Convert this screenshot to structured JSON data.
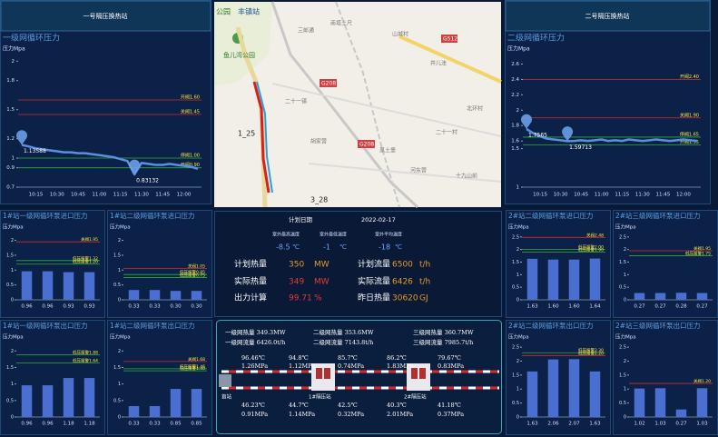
{
  "chart_data": [
    {
      "type": "line",
      "header": "一号隔压换热站",
      "title": "一级网循环压力",
      "y_label": "压力Mpa",
      "color": "#5b8fe0",
      "categories": [
        null,
        null,
        "10:15",
        null,
        null,
        "10:30",
        null,
        null,
        "10:45",
        null,
        null,
        "11:00",
        null,
        null,
        "11:15",
        null,
        null,
        "11:30",
        null,
        null,
        "11:45",
        null,
        null,
        "12:00",
        null,
        null
      ],
      "values": [
        1.13588,
        1.12,
        1.1,
        1.09,
        1.08,
        1.07,
        1.06,
        1.06,
        1.05,
        1.05,
        1.04,
        1.03,
        1.02,
        1.01,
        0.99,
        0.97,
        0.83132,
        0.95,
        0.94,
        0.93,
        0.93,
        0.94,
        0.93,
        0.92,
        0.91,
        0.89
      ],
      "value_labels": [
        "1.13588",
        null,
        null,
        null,
        null,
        null,
        null,
        null,
        null,
        null,
        null,
        null,
        null,
        null,
        null,
        null,
        "0.83132",
        null,
        null,
        null,
        null,
        null,
        null,
        null,
        null,
        null
      ],
      "ylim": [
        0.7,
        2.05
      ],
      "yticks": [
        0.7,
        0.9,
        1,
        1.2,
        1.5,
        1.8,
        2
      ],
      "thresholds": [
        {
          "value": 1.6,
          "label": "开阀1.60",
          "color": "#d62a2a"
        },
        {
          "value": 1.45,
          "label": "关阀1.45",
          "color": "#d62a2a"
        },
        {
          "value": 1,
          "label": "停阀1.00",
          "color": "#2fae3a"
        },
        {
          "value": 0.9,
          "label": "开阀0.90",
          "color": "#2fae3a"
        }
      ]
    },
    {
      "type": "line",
      "header": "二号隔压换热站",
      "title": "二级网循环压力",
      "y_label": "压力Mpa",
      "color": "#5b8fe0",
      "categories": [
        null,
        null,
        "10:15",
        null,
        null,
        "10:30",
        null,
        null,
        "10:45",
        null,
        null,
        "11:00",
        null,
        null,
        "11:15",
        null,
        null,
        "11:30",
        null,
        null,
        "11:45",
        null,
        null,
        "12:00",
        null,
        null
      ],
      "values": [
        1.7565,
        1.7,
        1.66,
        1.63,
        1.62,
        1.61,
        1.59713,
        1.6,
        1.61,
        1.6,
        1.61,
        1.62,
        1.6,
        1.61,
        1.6,
        1.62,
        1.61,
        1.6,
        1.61,
        1.62,
        1.61,
        1.6,
        1.61,
        1.62,
        1.61,
        1.6
      ],
      "value_labels": [
        "1.7565",
        null,
        null,
        null,
        null,
        null,
        "1.59713",
        null,
        null,
        null,
        null,
        null,
        null,
        null,
        null,
        null,
        null,
        null,
        null,
        null,
        null,
        null,
        null,
        null,
        null,
        null
      ],
      "ylim": [
        1,
        2.7
      ],
      "yticks": [
        1,
        1.5,
        1.6,
        1.8,
        2,
        2.2,
        2.4,
        2.6
      ],
      "thresholds": [
        {
          "value": 2.4,
          "label": "开阀2.40",
          "color": "#d62a2a"
        },
        {
          "value": 1.9,
          "label": "关阀1.90",
          "color": "#d62a2a"
        },
        {
          "value": 1.65,
          "label": "停阀1.65",
          "color": "#2fae3a"
        },
        {
          "value": 1.55,
          "label": "开阀1.55",
          "color": "#2fae3a"
        }
      ]
    },
    {
      "type": "bar",
      "title": "1#站一级网循环泵进口压力",
      "y_label": "压力Mpa",
      "color": "#4a6fd0",
      "values": [
        0.96,
        0.96,
        0.93,
        0.93
      ],
      "value_labels": [
        "0.96",
        "0.96",
        "0.93",
        "0.93"
      ],
      "ylim": [
        0,
        2.2
      ],
      "yticks": [
        0,
        0.5,
        1,
        1.5,
        2
      ],
      "thresholds": [
        {
          "value": 1.95,
          "label": "关阀1.95",
          "color": "#d62a2a"
        },
        {
          "value": 1.32,
          "label": "低压报警1.32",
          "color": "#2fae3a"
        },
        {
          "value": 1.2,
          "label": "低压报警1.20",
          "color": "#2fae3a"
        }
      ]
    },
    {
      "type": "bar",
      "title": "1#站二级网循环泵进口压力",
      "y_label": "压力Mpa",
      "color": "#4a6fd0",
      "values": [
        0.33,
        0.33,
        0.3,
        0.3
      ],
      "value_labels": [
        "0.33",
        "0.33",
        "0.30",
        "0.30"
      ],
      "ylim": [
        0,
        2.2
      ],
      "yticks": [
        0,
        0.5,
        1,
        1.5,
        2
      ],
      "thresholds": [
        {
          "value": 1.05,
          "label": "关阀1.05",
          "color": "#d62a2a"
        },
        {
          "value": 0.85,
          "label": "低压报警0.85",
          "color": "#2fae3a"
        },
        {
          "value": 0.75,
          "label": "低压报警0.75",
          "color": "#2fae3a"
        }
      ]
    },
    {
      "type": "bar",
      "title": "1#站一级网循环泵出口压力",
      "y_label": "压力Mpa",
      "color": "#4a6fd0",
      "values": [
        0.96,
        0.96,
        1.18,
        1.18
      ],
      "value_labels": [
        "0.96",
        "0.96",
        "1.18",
        "1.18"
      ],
      "ylim": [
        0,
        2.2
      ],
      "yticks": [
        0,
        0.5,
        1,
        1.5,
        2
      ],
      "thresholds": [
        {
          "value": 1.88,
          "label": "低压报警1.88",
          "color": "#2fae3a"
        },
        {
          "value": 1.64,
          "label": "低压报警1.64",
          "color": "#2fae3a"
        }
      ]
    },
    {
      "type": "bar",
      "title": "1#站二级网循环泵出口压力",
      "y_label": "压力Mpa",
      "color": "#4a6fd0",
      "values": [
        0.33,
        0.33,
        0.85,
        0.85
      ],
      "value_labels": [
        "0.33",
        "0.33",
        "0.85",
        "0.85"
      ],
      "ylim": [
        0,
        2.2
      ],
      "yticks": [
        0,
        0.5,
        1,
        1.5,
        2
      ],
      "thresholds": [
        {
          "value": 1.68,
          "label": "关阀1.68",
          "color": "#d62a2a"
        },
        {
          "value": 1.46,
          "label": "低压报警1.46",
          "color": "#2fae3a"
        },
        {
          "value": 1.4,
          "label": "低压报警1.40",
          "color": "#2fae3a"
        }
      ]
    },
    {
      "type": "bar",
      "title": "2#站二级网循环泵进口压力",
      "y_label": "压力Mpa",
      "color": "#4a6fd0",
      "values": [
        1.63,
        1.6,
        1.6,
        1.64
      ],
      "value_labels": [
        "1.63",
        "1.60",
        "1.60",
        "1.64"
      ],
      "ylim": [
        0,
        2.6
      ],
      "yticks": [
        0,
        0.5,
        1,
        1.5,
        2,
        2.5
      ],
      "thresholds": [
        {
          "value": 2.48,
          "label": "关阀2.48",
          "color": "#d62a2a"
        },
        {
          "value": 2.0,
          "label": "低压报警2.00",
          "color": "#2fae3a"
        },
        {
          "value": 1.9,
          "label": "低压报警1.90",
          "color": "#2fae3a"
        }
      ]
    },
    {
      "type": "bar",
      "title": "2#站三级网循环泵进口压力",
      "y_label": "压力Mpa",
      "color": "#4a6fd0",
      "values": [
        0.27,
        0.27,
        0.28,
        0.27
      ],
      "value_labels": [
        "0.27",
        "0.27",
        "0.28",
        "0.27"
      ],
      "ylim": [
        0,
        2.6
      ],
      "yticks": [
        0,
        0.5,
        1,
        1.5,
        2,
        2.5
      ],
      "thresholds": [
        {
          "value": 1.95,
          "label": "关阀1.95",
          "color": "#d62a2a"
        },
        {
          "value": 1.75,
          "label": "低压报警1.75",
          "color": "#2fae3a"
        }
      ]
    },
    {
      "type": "bar",
      "title": "2#站二级网循环泵出口压力",
      "y_label": "压力Mpa",
      "color": "#4a6fd0",
      "values": [
        1.63,
        2.06,
        2.07,
        1.63
      ],
      "value_labels": [
        "1.63",
        "2.06",
        "2.07",
        "1.63"
      ],
      "ylim": [
        0,
        2.6
      ],
      "yticks": [
        0,
        0.5,
        1,
        1.5,
        2,
        2.5
      ],
      "thresholds": [
        {
          "value": 2.3,
          "label": "低压报警2.30",
          "color": "#2fae3a"
        },
        {
          "value": 2.2,
          "label": "低压报警2.20",
          "color": "#d62a2a"
        }
      ]
    },
    {
      "type": "bar",
      "title": "2#站三级网循环泵出口压力",
      "y_label": "压力Mpa",
      "color": "#4a6fd0",
      "values": [
        1.02,
        1.03,
        0.27,
        1.03
      ],
      "value_labels": [
        "1.02",
        "1.03",
        "0.27",
        "1.03"
      ],
      "ylim": [
        0,
        2.6
      ],
      "yticks": [
        0,
        0.5,
        1,
        1.5,
        2,
        2.5
      ],
      "thresholds": [
        {
          "value": 1.2,
          "label": "关阀1.20",
          "color": "#d62a2a"
        }
      ]
    }
  ],
  "map": {
    "labels": [
      "公园",
      "丰镇站",
      "三郎通",
      "南塔土尺",
      "G512",
      "山城村",
      "井儿洼",
      "鱼儿湾公园",
      "G208",
      "二十一镇",
      "二十一村",
      "北环村",
      "胡家营",
      "黑土堡",
      "河东营",
      "十九山前",
      "1_25",
      "3_28",
      "G208"
    ]
  },
  "summary": {
    "date_label": "计划日期",
    "date": "2022-02-17",
    "temps": [
      {
        "label": "室外最高温度",
        "value": -8.5,
        "unit": "℃"
      },
      {
        "label": "室外最低温度",
        "value": -1,
        "unit": "℃"
      },
      {
        "label": "室外平均温度",
        "value": -18,
        "unit": "℃"
      }
    ],
    "rows": [
      [
        {
          "label": "计划热量",
          "value": 350,
          "unit": "MW"
        },
        {
          "label": "计划流量",
          "value": 6500,
          "unit": "t/h"
        }
      ],
      [
        {
          "label": "实际热量",
          "value": 349,
          "unit": "MW"
        },
        {
          "label": "实际流量",
          "value": 6426,
          "unit": "t/h"
        }
      ],
      [
        {
          "label": "出力计算",
          "value": 99.71,
          "unit": "%"
        },
        {
          "label": "昨日热量",
          "value": 30620,
          "unit": "GJ"
        }
      ]
    ]
  },
  "pipeline": {
    "totals": [
      [
        "一级网热量 349.3MW",
        "二级网热量 353.6MW",
        "三级网热量 360.7MW"
      ],
      [
        "一级网流量 6426.0t/h",
        "二级网流量 7143.8t/h",
        "三级网流量 7985.7t/h"
      ]
    ],
    "supply": [
      [
        "96.46℃",
        "1.26MPa"
      ],
      [
        "94.8℃",
        "1.12MPa"
      ],
      [
        "85.7℃",
        "0.74MPa"
      ],
      [
        "86.2℃",
        "1.83MPa"
      ],
      [
        "79.67℃",
        "0.83MPa"
      ]
    ],
    "return": [
      [
        "46.23℃",
        "0.91MPa"
      ],
      [
        "44.7℃",
        "1.14MPa"
      ],
      [
        "42.5℃",
        "0.32MPa"
      ],
      [
        "40.3℃",
        "2.01MPa"
      ],
      [
        "41.18℃",
        "0.37MPa"
      ]
    ],
    "stations": [
      "首站",
      "1#隔压站",
      "2#隔压站"
    ]
  }
}
